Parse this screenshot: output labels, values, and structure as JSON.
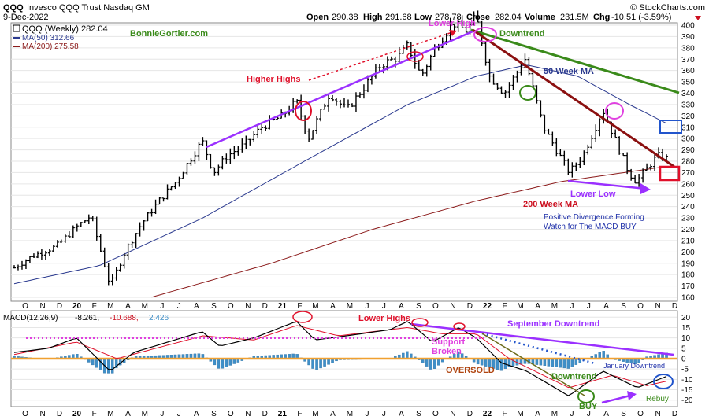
{
  "header": {
    "symbol": "QQQ",
    "name": "Invesco QQQ Trust Nasdaq GM",
    "date": "9-Dec-2022",
    "open_label": "Open",
    "open": "290.38",
    "high_label": "High",
    "high": "291.68",
    "low_label": "Low",
    "low": "278.78",
    "close_label": "Close",
    "close": "282.04",
    "volume_label": "Volume",
    "volume": "231.5M",
    "chg_label": "Chg",
    "chg": "-10.51 (-3.59%)",
    "watermark": "© StockCharts.com"
  },
  "legend": {
    "main": "QQQ (Weekly) 282.04",
    "ma50": "MA(50) 312.66",
    "ma200": "MA(200) 275.58",
    "site": "BonnieGortler.com"
  },
  "colors": {
    "ma50": "#2b3a8f",
    "ma200": "#8b1a1a",
    "purple": "#9b30ff",
    "green": "#3a8a1a",
    "darkred": "#8b1010",
    "red": "#e0102a",
    "magenta": "#e040e0",
    "blue": "#2255cc",
    "hist": "#3f8fc8",
    "orange": "#f0a030"
  },
  "annotations_price": {
    "higher_highs": "Higher Highs",
    "lower_high": "Lower High",
    "downtrend": "Downtrend",
    "ma50_label": "50 Week MA",
    "ma200_label": "200 Week MA",
    "lower_low": "Lower Low",
    "divergence1": "Positive Divergence Forming",
    "divergence2": "Watch for The MACD BUY"
  },
  "annotations_macd": {
    "lower_highs": "Lower Highs",
    "september_downtrend": "September Downtrend",
    "support_broken1": "Support",
    "support_broken2": "Broken",
    "oversold": "OVERSOLD",
    "january_downtrend": "January Downtrend",
    "downtrend": "Downtrend",
    "buy": "BUY",
    "rebuy": "Rebuy"
  },
  "macd_legend": {
    "label": "MACD(12,26,9)",
    "macd": "-8.261,",
    "signal": "-10.688,",
    "hist": "2.426"
  },
  "x_axis_labels": [
    "O",
    "N",
    "D",
    "20",
    "F",
    "M",
    "A",
    "M",
    "J",
    "J",
    "A",
    "S",
    "O",
    "N",
    "D",
    "21",
    "F",
    "M",
    "A",
    "M",
    "J",
    "J",
    "A",
    "S",
    "O",
    "N",
    "D",
    "22",
    "F",
    "M",
    "A",
    "M",
    "J",
    "J",
    "A",
    "S",
    "O",
    "N",
    "D"
  ],
  "chart_data": [
    {
      "type": "ohlc",
      "title": "QQQ (Weekly)",
      "ylim": [
        160,
        400
      ],
      "y_ticks": [
        160,
        170,
        180,
        190,
        200,
        210,
        220,
        230,
        240,
        250,
        260,
        270,
        280,
        290,
        300,
        310,
        320,
        330,
        340,
        350,
        360,
        370,
        380,
        390,
        400
      ],
      "x_start": "2019-10",
      "x_end": "2022-12",
      "price_path": [
        [
          "2019-10-01",
          186
        ],
        [
          "2019-11-01",
          196
        ],
        [
          "2019-12-15",
          205
        ],
        [
          "2020-01-20",
          222
        ],
        [
          "2020-02-15",
          232
        ],
        [
          "2020-03-20",
          170
        ],
        [
          "2020-04-15",
          200
        ],
        [
          "2020-05-15",
          225
        ],
        [
          "2020-06-15",
          245
        ],
        [
          "2020-07-15",
          262
        ],
        [
          "2020-08-31",
          298
        ],
        [
          "2020-09-20",
          270
        ],
        [
          "2020-10-15",
          285
        ],
        [
          "2020-11-15",
          295
        ],
        [
          "2020-12-15",
          310
        ],
        [
          "2021-01-20",
          320
        ],
        [
          "2021-02-15",
          333
        ],
        [
          "2021-03-08",
          300
        ],
        [
          "2021-04-15",
          340
        ],
        [
          "2021-05-15",
          325
        ],
        [
          "2021-06-15",
          345
        ],
        [
          "2021-07-15",
          365
        ],
        [
          "2021-08-15",
          372
        ],
        [
          "2021-09-01",
          382
        ],
        [
          "2021-09-25",
          355
        ],
        [
          "2021-10-20",
          380
        ],
        [
          "2021-11-20",
          402
        ],
        [
          "2021-12-15",
          395
        ],
        [
          "2022-01-01",
          408
        ],
        [
          "2022-01-25",
          355
        ],
        [
          "2022-02-20",
          340
        ],
        [
          "2022-03-29",
          370
        ],
        [
          "2022-05-01",
          310
        ],
        [
          "2022-06-16",
          270
        ],
        [
          "2022-07-10",
          285
        ],
        [
          "2022-08-15",
          325
        ],
        [
          "2022-09-30",
          270
        ],
        [
          "2022-10-13",
          262
        ],
        [
          "2022-11-20",
          285
        ],
        [
          "2022-12-09",
          282
        ]
      ],
      "ma50_path": [
        [
          "2019-10-01",
          172
        ],
        [
          "2020-03-01",
          188
        ],
        [
          "2020-09-01",
          230
        ],
        [
          "2021-03-01",
          280
        ],
        [
          "2021-09-01",
          330
        ],
        [
          "2022-01-01",
          355
        ],
        [
          "2022-04-01",
          365
        ],
        [
          "2022-07-01",
          355
        ],
        [
          "2022-10-01",
          330
        ],
        [
          "2022-12-09",
          312.66
        ]
      ],
      "ma200_path": [
        [
          "2019-10-01",
          140
        ],
        [
          "2020-06-01",
          160
        ],
        [
          "2021-01-01",
          190
        ],
        [
          "2021-07-01",
          220
        ],
        [
          "2022-01-01",
          245
        ],
        [
          "2022-06-01",
          262
        ],
        [
          "2022-12-09",
          275.58
        ]
      ]
    },
    {
      "type": "macd",
      "title": "MACD(12,26,9)",
      "ylim": [
        -22,
        22
      ],
      "y_ticks": [
        -20,
        -15,
        -10,
        -5,
        0,
        5,
        10,
        15,
        20
      ],
      "macd_path": [
        [
          "2019-10-01",
          3
        ],
        [
          "2019-12-01",
          5
        ],
        [
          "2020-01-20",
          10
        ],
        [
          "2020-03-20",
          -6
        ],
        [
          "2020-05-01",
          3
        ],
        [
          "2020-08-31",
          13
        ],
        [
          "2020-10-01",
          6
        ],
        [
          "2020-12-01",
          10
        ],
        [
          "2021-02-15",
          18
        ],
        [
          "2021-03-20",
          9
        ],
        [
          "2021-05-15",
          11
        ],
        [
          "2021-08-01",
          14
        ],
        [
          "2021-09-01",
          18
        ],
        [
          "2021-10-15",
          8
        ],
        [
          "2021-12-01",
          15
        ],
        [
          "2022-01-01",
          10
        ],
        [
          "2022-02-15",
          -2
        ],
        [
          "2022-04-01",
          -6
        ],
        [
          "2022-06-15",
          -18
        ],
        [
          "2022-08-15",
          -6
        ],
        [
          "2022-10-15",
          -14
        ],
        [
          "2022-12-09",
          -8.261
        ]
      ],
      "signal_path": [
        [
          "2019-10-01",
          2
        ],
        [
          "2020-01-20",
          8
        ],
        [
          "2020-04-01",
          0
        ],
        [
          "2020-09-01",
          11
        ],
        [
          "2020-12-01",
          9
        ],
        [
          "2021-02-15",
          16
        ],
        [
          "2021-05-01",
          11
        ],
        [
          "2021-09-01",
          15
        ],
        [
          "2021-11-01",
          12
        ],
        [
          "2022-01-01",
          12
        ],
        [
          "2022-03-01",
          0
        ],
        [
          "2022-06-15",
          -14
        ],
        [
          "2022-09-01",
          -8
        ],
        [
          "2022-11-01",
          -13
        ],
        [
          "2022-12-09",
          -10.688
        ]
      ],
      "histogram": [
        [
          "2020-03-20",
          -6
        ],
        [
          "2020-09-01",
          2
        ],
        [
          "2021-03-20",
          -3
        ],
        [
          "2021-09-01",
          2
        ],
        [
          "2021-12-01",
          3
        ],
        [
          "2022-02-15",
          -4
        ],
        [
          "2022-06-15",
          -5
        ],
        [
          "2022-08-15",
          4
        ],
        [
          "2022-10-15",
          -1
        ],
        [
          "2022-12-09",
          2.426
        ]
      ]
    }
  ]
}
